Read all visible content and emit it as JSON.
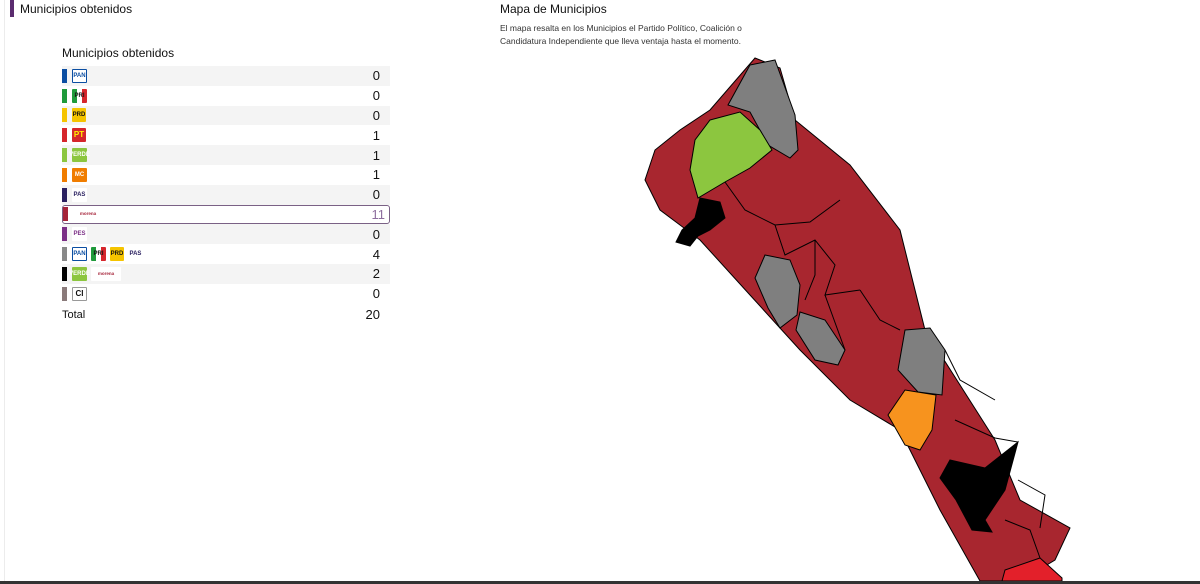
{
  "left_heading": "Municipios obtenidos",
  "table": {
    "title": "Municipios obtenidos",
    "rows": [
      {
        "color": "#0b4ea2",
        "logos": [
          {
            "icon": "pan-logo",
            "text": "PAN"
          }
        ],
        "value": "0"
      },
      {
        "color": "#1f9a3b",
        "logos": [
          {
            "icon": "pri-logo",
            "text": "PRI"
          }
        ],
        "value": "0"
      },
      {
        "color": "#f5c400",
        "logos": [
          {
            "icon": "prd-logo",
            "text": "PRD"
          }
        ],
        "value": "0"
      },
      {
        "color": "#d6262c",
        "logos": [
          {
            "icon": "pt-logo",
            "text": "PT"
          }
        ],
        "value": "1"
      },
      {
        "color": "#8cc63f",
        "logos": [
          {
            "icon": "pvem-logo",
            "text": "VERDE"
          }
        ],
        "value": "1"
      },
      {
        "color": "#f07d00",
        "logos": [
          {
            "icon": "mc-logo",
            "text": "MC"
          }
        ],
        "value": "1"
      },
      {
        "color": "#2a2060",
        "logos": [
          {
            "icon": "pas-logo",
            "text": "PAS"
          }
        ],
        "value": "0"
      },
      {
        "color": "#a6243a",
        "logos": [
          {
            "icon": "morena-logo",
            "text": "morena"
          }
        ],
        "value": "11",
        "highlight": true
      },
      {
        "color": "#7b2f86",
        "logos": [
          {
            "icon": "pes-logo",
            "text": "PES"
          }
        ],
        "value": "0"
      },
      {
        "color": "#888888",
        "logos": [
          {
            "icon": "pan-logo",
            "text": "PAN"
          },
          {
            "icon": "pri-logo",
            "text": "PRI"
          },
          {
            "icon": "prd-logo",
            "text": "PRD"
          },
          {
            "icon": "pas-logo",
            "text": "PAS"
          }
        ],
        "value": "4"
      },
      {
        "color": "#000000",
        "logos": [
          {
            "icon": "pvem-logo",
            "text": "VERDE"
          },
          {
            "icon": "morena-logo",
            "text": "morena"
          }
        ],
        "value": "2"
      },
      {
        "color": "#8a7a7a",
        "logos": [
          {
            "icon": "ci-logo",
            "text": "CI"
          }
        ],
        "value": "0"
      }
    ],
    "total_label": "Total",
    "total_value": "20"
  },
  "map": {
    "title": "Mapa de Municipios",
    "description": "El mapa resalta en los Municipios el Partido Político, Coalición o Candidatura Independiente que lleva ventaja hasta el momento.",
    "colors": {
      "morena": "#a8262f",
      "gray": "#7f7f7f",
      "green": "#8cc63f",
      "black": "#000000",
      "orange": "#f7931e",
      "red": "#e3202a"
    }
  }
}
